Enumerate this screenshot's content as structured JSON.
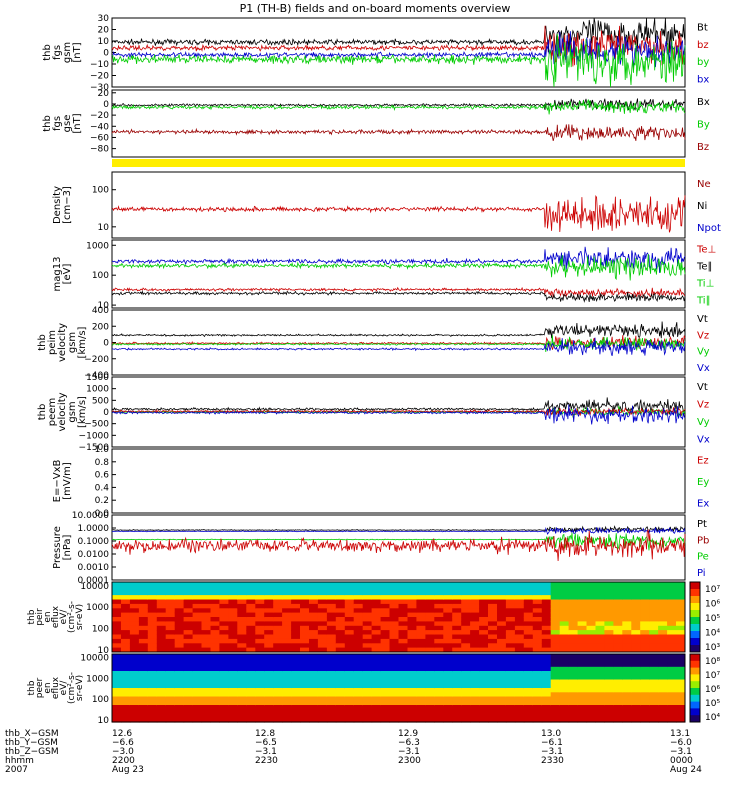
{
  "title": "P1 (TH-B) fields and on-board moments overview",
  "chart_data": {
    "type": "line",
    "panels": [
      {
        "id": "fgs_gsm",
        "ylabel": [
          "thb",
          "fgs",
          "gsm",
          "[nT]"
        ],
        "ticks": [
          "30",
          "20",
          "10",
          "0",
          "−10",
          "−20",
          "−30"
        ],
        "ylim": [
          -30,
          30
        ],
        "log": false,
        "legend": [
          {
            "name": "Bt",
            "color": "#000000"
          },
          {
            "name": "bz",
            "color": "#cc0000"
          },
          {
            "name": "by",
            "color": "#00cc00"
          },
          {
            "name": "bx",
            "color": "#0000cc"
          }
        ],
        "series": [
          {
            "name": "Bt",
            "color": "#000000",
            "before": 9,
            "after": 16,
            "nb": 1.5,
            "na": 10
          },
          {
            "name": "bz",
            "color": "#cc0000",
            "before": 4,
            "after": 5,
            "nb": 1.5,
            "na": 10
          },
          {
            "name": "bx",
            "color": "#0000cc",
            "before": -2,
            "after": 2,
            "nb": 1.5,
            "na": 10
          },
          {
            "name": "by",
            "color": "#00cc00",
            "before": -6,
            "after": -7,
            "nb": 2.5,
            "na": 14
          }
        ]
      },
      {
        "id": "fgs_gse",
        "ylabel": [
          "thb",
          "fgs",
          "gse",
          "[nT]"
        ],
        "ticks": [
          "20",
          "0",
          "−20",
          "−40",
          "−60",
          "−80"
        ],
        "ylim": [
          -95,
          25
        ],
        "log": false,
        "legend": [
          {
            "name": "Bx",
            "color": "#000000"
          },
          {
            "name": "By",
            "color": "#00cc00"
          },
          {
            "name": "Bz",
            "color": "#990000"
          }
        ],
        "series": [
          {
            "name": "Bx",
            "color": "#000000",
            "before": -2,
            "after": 0,
            "nb": 1.5,
            "na": 7
          },
          {
            "name": "By",
            "color": "#00cc00",
            "before": -6,
            "after": -4,
            "nb": 2,
            "na": 8
          },
          {
            "name": "Bz",
            "color": "#990000",
            "before": -50,
            "after": -52,
            "nb": 2.5,
            "na": 9
          }
        ]
      },
      {
        "id": "density",
        "ylabel": [
          "Density",
          "[cm−3]"
        ],
        "ticks": [
          "100",
          "10"
        ],
        "ylim": [
          5,
          300
        ],
        "log": true,
        "legend": [
          {
            "name": "Ne",
            "color": "#990000"
          },
          {
            "name": "Ni",
            "color": "#000000"
          },
          {
            "name": "Npot",
            "color": "#0000cc"
          }
        ],
        "series": [
          {
            "name": "Ni",
            "color": "#cc0000",
            "before": 30,
            "after": 22,
            "nb": 0.04,
            "na": 0.35
          }
        ]
      },
      {
        "id": "temperature",
        "ylabel": [
          "mag13",
          "[eV]"
        ],
        "ticks": [
          "1000",
          "100",
          "10"
        ],
        "ylim": [
          8,
          1500
        ],
        "log": true,
        "legend": [
          {
            "name": "Te⊥",
            "color": "#cc0000"
          },
          {
            "name": "Te∥",
            "color": "#000000"
          },
          {
            "name": "Ti⊥",
            "color": "#00cc00"
          },
          {
            "name": "Ti∥",
            "color": "#00cc00"
          }
        ],
        "series": [
          {
            "name": "Ti⊥",
            "color": "#0000cc",
            "before": 290,
            "after": 350,
            "nb": 0.05,
            "na": 0.25
          },
          {
            "name": "Ti∥",
            "color": "#00cc00",
            "before": 210,
            "after": 180,
            "nb": 0.05,
            "na": 0.25
          },
          {
            "name": "Te⊥",
            "color": "#cc0000",
            "before": 33,
            "after": 25,
            "nb": 0.03,
            "na": 0.1
          },
          {
            "name": "Te∥",
            "color": "#000000",
            "before": 25,
            "after": 18,
            "nb": 0.03,
            "na": 0.1
          }
        ]
      },
      {
        "id": "peim_velocity",
        "ylabel": [
          "thb",
          "peim",
          "velocity",
          "gsm",
          "[km/s]"
        ],
        "ticks": [
          "400",
          "200",
          "0",
          "−200",
          "−400"
        ],
        "ylim": [
          -400,
          400
        ],
        "log": false,
        "legend": [
          {
            "name": "Vt",
            "color": "#000000"
          },
          {
            "name": "Vz",
            "color": "#cc0000"
          },
          {
            "name": "Vy",
            "color": "#00cc00"
          },
          {
            "name": "Vx",
            "color": "#0000cc"
          }
        ],
        "series": [
          {
            "name": "Vt",
            "color": "#000000",
            "before": 90,
            "after": 150,
            "nb": 8,
            "na": 60
          },
          {
            "name": "Vz",
            "color": "#cc0000",
            "before": -10,
            "after": 0,
            "nb": 8,
            "na": 50
          },
          {
            "name": "Vy",
            "color": "#00cc00",
            "before": -20,
            "after": -20,
            "nb": 8,
            "na": 60
          },
          {
            "name": "Vx",
            "color": "#0000cc",
            "before": -80,
            "after": -60,
            "nb": 8,
            "na": 70
          }
        ]
      },
      {
        "id": "peem_velocity",
        "ylabel": [
          "thb",
          "peem",
          "velocity",
          "gsm",
          "[km/s]"
        ],
        "ticks": [
          "1500",
          "1000",
          "500",
          "0",
          "−500",
          "−1000",
          "−1500"
        ],
        "ylim": [
          -1500,
          1500
        ],
        "log": false,
        "legend": [
          {
            "name": "Vt",
            "color": "#000000"
          },
          {
            "name": "Vz",
            "color": "#cc0000"
          },
          {
            "name": "Vy",
            "color": "#00cc00"
          },
          {
            "name": "Vx",
            "color": "#0000cc"
          }
        ],
        "series": [
          {
            "name": "Vt",
            "color": "#000000",
            "before": 120,
            "after": 250,
            "nb": 35,
            "na": 200
          },
          {
            "name": "Vy",
            "color": "#00cc00",
            "before": 0,
            "after": 0,
            "nb": 30,
            "na": 120
          },
          {
            "name": "Vz",
            "color": "#cc0000",
            "before": 30,
            "after": 20,
            "nb": 30,
            "na": 120
          },
          {
            "name": "Vx",
            "color": "#0000cc",
            "before": -30,
            "after": -150,
            "nb": 30,
            "na": 250
          }
        ]
      },
      {
        "id": "efield",
        "ylabel": [
          "E=−VxB",
          "[mV/m]"
        ],
        "ticks": [
          "1.0",
          "0.8",
          "0.6",
          "0.4",
          "0.2",
          "0.0"
        ],
        "ylim": [
          0,
          1
        ],
        "log": false,
        "legend": [
          {
            "name": "Ez",
            "color": "#cc0000"
          },
          {
            "name": "Ey",
            "color": "#00cc00"
          },
          {
            "name": "Ex",
            "color": "#0000cc"
          }
        ],
        "series": []
      },
      {
        "id": "pressure",
        "ylabel": [
          "Pressure",
          "[nPa]"
        ],
        "ticks": [
          "10.0000",
          "1.0000",
          "0.1000",
          "0.0100",
          "0.0010",
          "0.0001"
        ],
        "ylim": [
          0.0001,
          10
        ],
        "log": true,
        "legend": [
          {
            "name": "Pt",
            "color": "#000000"
          },
          {
            "name": "Pb",
            "color": "#990000"
          },
          {
            "name": "Pe",
            "color": "#00cc00"
          },
          {
            "name": "Pi",
            "color": "#0000cc"
          }
        ],
        "series": [
          {
            "name": "Pt",
            "color": "#000000",
            "before": 0.7,
            "after": 0.8,
            "nb": 0.02,
            "na": 0.15
          },
          {
            "name": "Pi",
            "color": "#0000cc",
            "before": 0.55,
            "after": 0.6,
            "nb": 0.02,
            "na": 0.15
          },
          {
            "name": "Pe",
            "color": "#00cc00",
            "before": 0.13,
            "after": 0.1,
            "nb": 0.02,
            "na": 0.4
          },
          {
            "name": "Pb",
            "color": "#cc0000",
            "before": 0.045,
            "after": 0.04,
            "nb": 0.35,
            "na": 0.6
          }
        ]
      }
    ],
    "spectrograms": [
      {
        "id": "peir_en_eflux",
        "ylabel": [
          "thb",
          "peir",
          "en",
          "eflux",
          "eV/",
          "(cm²-s-",
          "sr-eV)"
        ],
        "ticks": [
          "10000",
          "1000",
          "100",
          "10"
        ],
        "ylim": [
          8,
          15000
        ],
        "colorbar": [
          "10⁷",
          "10⁶",
          "10⁵",
          "10⁴",
          "10³"
        ]
      },
      {
        "id": "peer_en_eflux",
        "ylabel": [
          "thb",
          "peer",
          "en",
          "eflux",
          "eV/",
          "(cm²-s-",
          "sr-eV)"
        ],
        "ticks": [
          "10000",
          "1000",
          "100",
          "10"
        ],
        "ylim": [
          8,
          15000
        ],
        "colorbar": [
          "10⁸",
          "10⁷",
          "10⁶",
          "10⁵",
          "10⁴"
        ]
      }
    ],
    "quality_bar_color": "#ffee00",
    "event_time_fraction": 0.755,
    "xaxis": {
      "rows": [
        {
          "label": "thb_X−GSM",
          "values": [
            "12.6",
            "12.8",
            "12.9",
            "13.0",
            "13.1"
          ]
        },
        {
          "label": "thb_Y−GSM",
          "values": [
            "−6.6",
            "−6.5",
            "−6.3",
            "−6.1",
            "−6.0"
          ]
        },
        {
          "label": "thb_Z−GSM",
          "values": [
            "−3.0",
            "−3.1",
            "−3.1",
            "−3.1",
            "−3.1"
          ]
        },
        {
          "label": "hhmm",
          "values": [
            "2200",
            "2230",
            "2300",
            "2330",
            "0000"
          ]
        },
        {
          "label": "2007",
          "values": [
            "Aug 23",
            "",
            "",
            "",
            "Aug 24"
          ]
        }
      ]
    }
  }
}
